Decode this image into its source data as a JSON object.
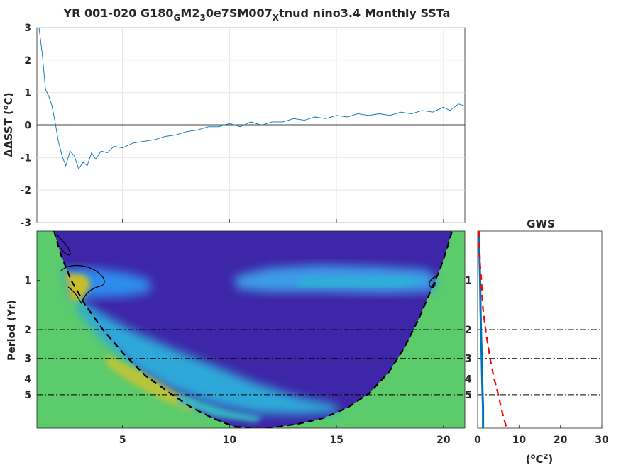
{
  "title": {
    "t1": "YR 001-020 G180",
    "s1": "G",
    "t2": "M2",
    "s2": "3",
    "t3": "0e7SM007",
    "s3": "X",
    "t4": "tnud nino3.4 Monthly SSTa"
  },
  "colors": {
    "series": "#0072bd",
    "wavelet_bg": "#5ccb6c",
    "wavelet_low": "#3d26a8",
    "coi_outline": "#000000",
    "gws_line": "#0072bd",
    "gws_sig": "#ff0000"
  },
  "chart_data": [
    {
      "type": "line",
      "ylabel": "ΔSST (°C)",
      "ylabel_main": "ΔSST (",
      "ylabel_sup": "o",
      "ylabel_end": "C)",
      "xlim": [
        1,
        21
      ],
      "ylim": [
        -3,
        3
      ],
      "xticks": [
        5,
        10,
        15,
        20
      ],
      "yticks": [
        -3,
        -2,
        -1,
        0,
        1,
        2,
        3
      ],
      "ytick_labels": [
        "-3",
        "-2",
        "-1",
        "0",
        "1",
        "2",
        "3"
      ],
      "grid": true,
      "zero_line": true,
      "series_points": [
        [
          1.1,
          3.0
        ],
        [
          1.25,
          2.2
        ],
        [
          1.4,
          1.1
        ],
        [
          1.55,
          0.9
        ],
        [
          1.7,
          0.6
        ],
        [
          1.85,
          0.1
        ],
        [
          2.0,
          -0.5
        ],
        [
          2.2,
          -1.0
        ],
        [
          2.35,
          -1.25
        ],
        [
          2.55,
          -0.8
        ],
        [
          2.75,
          -0.95
        ],
        [
          2.95,
          -1.35
        ],
        [
          3.15,
          -1.15
        ],
        [
          3.35,
          -1.25
        ],
        [
          3.55,
          -0.85
        ],
        [
          3.75,
          -1.05
        ],
        [
          4.0,
          -0.8
        ],
        [
          4.3,
          -0.85
        ],
        [
          4.6,
          -0.65
        ],
        [
          5.0,
          -0.7
        ],
        [
          5.5,
          -0.55
        ],
        [
          6.0,
          -0.5
        ],
        [
          6.5,
          -0.45
        ],
        [
          7.0,
          -0.35
        ],
        [
          7.5,
          -0.3
        ],
        [
          8.0,
          -0.2
        ],
        [
          8.5,
          -0.15
        ],
        [
          9.0,
          -0.05
        ],
        [
          9.5,
          -0.05
        ],
        [
          10.0,
          0.05
        ],
        [
          10.5,
          -0.05
        ],
        [
          11.0,
          0.1
        ],
        [
          11.5,
          0.0
        ],
        [
          12.0,
          0.1
        ],
        [
          12.5,
          0.1
        ],
        [
          13.0,
          0.2
        ],
        [
          13.5,
          0.15
        ],
        [
          14.0,
          0.25
        ],
        [
          14.5,
          0.2
        ],
        [
          15.0,
          0.3
        ],
        [
          15.5,
          0.25
        ],
        [
          16.0,
          0.35
        ],
        [
          16.5,
          0.3
        ],
        [
          17.0,
          0.35
        ],
        [
          17.5,
          0.3
        ],
        [
          18.0,
          0.4
        ],
        [
          18.5,
          0.35
        ],
        [
          19.0,
          0.45
        ],
        [
          19.5,
          0.4
        ],
        [
          20.0,
          0.55
        ],
        [
          20.3,
          0.45
        ],
        [
          20.7,
          0.65
        ],
        [
          20.95,
          0.6
        ]
      ]
    },
    {
      "type": "heatmap",
      "ylabel": "Period (Yr)",
      "xlim": [
        1,
        21
      ],
      "xticks": [
        5,
        10,
        15,
        20
      ],
      "yticks": [
        1,
        2,
        3,
        4,
        5
      ],
      "ytick_labels": [
        "1",
        "2",
        "3",
        "4",
        "5"
      ],
      "period_range": [
        0.5,
        8
      ],
      "reference_periods": [
        2,
        3,
        4,
        5
      ]
    },
    {
      "type": "line",
      "title": "GWS",
      "xlabel": "(°C²)",
      "xlabel_open": "(",
      "xlabel_sup1": "o",
      "xlabel_mid": "C",
      "xlabel_sup2": "2",
      "xlabel_close": ")",
      "xlim": [
        0,
        30
      ],
      "xticks": [
        0,
        10,
        20,
        30
      ],
      "xtick_labels": [
        "0",
        "10",
        "20",
        "30"
      ],
      "yticks": [
        1,
        2,
        3,
        4,
        5
      ],
      "ytick_labels": [
        "1",
        "2",
        "3",
        "4",
        "5"
      ],
      "gws_points": [
        [
          0.3,
          0.5
        ],
        [
          0.5,
          0.8
        ],
        [
          0.6,
          1.0
        ],
        [
          0.7,
          1.5
        ],
        [
          0.8,
          2.0
        ],
        [
          1.0,
          3.0
        ],
        [
          1.1,
          4.0
        ],
        [
          1.2,
          5.0
        ],
        [
          1.3,
          6.0
        ],
        [
          1.3,
          8.0
        ]
      ],
      "sig_points": [
        [
          0.3,
          0.5
        ],
        [
          0.6,
          0.8
        ],
        [
          0.9,
          1.0
        ],
        [
          1.3,
          1.5
        ],
        [
          1.9,
          2.0
        ],
        [
          3.0,
          3.0
        ],
        [
          4.0,
          4.0
        ],
        [
          5.0,
          5.0
        ],
        [
          6.0,
          6.5
        ],
        [
          7.0,
          8.0
        ]
      ]
    }
  ]
}
